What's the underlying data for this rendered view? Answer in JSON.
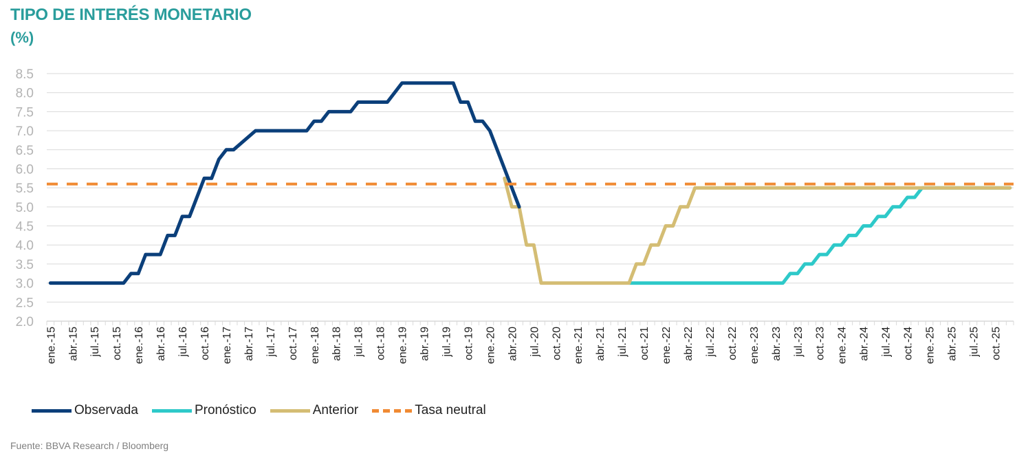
{
  "title": "TIPO DE INTERÉS MONETARIO",
  "subtitle": "(%)",
  "source": "Fuente: BBVA Research / Bloomberg",
  "colors": {
    "title": "#2a9d9c",
    "observada": "#0b3f7a",
    "pronostico": "#2ec9c9",
    "anterior": "#d4bd74",
    "tasa_neutral": "#f08a33",
    "grid": "#d9d9d9",
    "axis_text": "#b3b3b3",
    "tick_text": "#222222"
  },
  "chart_data": {
    "type": "line",
    "title": "TIPO DE INTERÉS MONETARIO",
    "ylabel": "(%)",
    "ylim": [
      2.0,
      8.5
    ],
    "yticks": [
      "2.0",
      "2.5",
      "3.0",
      "3.5",
      "4.0",
      "4.5",
      "5.0",
      "5.5",
      "6.0",
      "6.5",
      "7.0",
      "7.5",
      "8.0",
      "8.5"
    ],
    "xticks": [
      "ene.-15",
      "abr.-15",
      "jul.-15",
      "oct.-15",
      "ene.-16",
      "abr.-16",
      "jul.-16",
      "oct.-16",
      "ene.-17",
      "abr.-17",
      "jul.-17",
      "oct.-17",
      "ene.-18",
      "abr.-18",
      "jul.-18",
      "oct.-18",
      "ene.-19",
      "abr.-19",
      "jul.-19",
      "oct.-19",
      "ene.-20",
      "abr.-20",
      "jul.-20",
      "oct.-20",
      "ene.-21",
      "abr.-21",
      "jul.-21",
      "oct.-21",
      "ene.-22",
      "abr.-22",
      "jul.-22",
      "oct.-22",
      "ene.-23",
      "abr.-23",
      "jul.-23",
      "oct.-23",
      "ene.-24",
      "abr.-24",
      "jul.-24",
      "oct.-24",
      "ene.-25",
      "abr.-25",
      "jul.-25",
      "oct.-25"
    ],
    "grid": true,
    "legend_position": "bottom-left",
    "series": [
      {
        "name": "Observada",
        "style": "solid",
        "points": [
          [
            "ene.-15",
            3.0
          ],
          [
            "nov.-15",
            3.0
          ],
          [
            "dic.-15",
            3.25
          ],
          [
            "ene.-16",
            3.25
          ],
          [
            "feb.-16",
            3.75
          ],
          [
            "abr.-16",
            3.75
          ],
          [
            "may.-16",
            4.25
          ],
          [
            "jun.-16",
            4.25
          ],
          [
            "jul.-16",
            4.75
          ],
          [
            "ago.-16",
            4.75
          ],
          [
            "oct.-16",
            5.75
          ],
          [
            "nov.-16",
            5.75
          ],
          [
            "dic.-16",
            6.25
          ],
          [
            "ene.-17",
            6.5
          ],
          [
            "feb.-17",
            6.5
          ],
          [
            "may.-17",
            7.0
          ],
          [
            "dic.-17",
            7.0
          ],
          [
            "ene.-18",
            7.25
          ],
          [
            "feb.-18",
            7.25
          ],
          [
            "mar.-18",
            7.5
          ],
          [
            "jun.-18",
            7.5
          ],
          [
            "jul.-18",
            7.75
          ],
          [
            "nov.-18",
            7.75
          ],
          [
            "ene.-19",
            8.25
          ],
          [
            "ago.-19",
            8.25
          ],
          [
            "sep.-19",
            7.75
          ],
          [
            "oct.-19",
            7.75
          ],
          [
            "nov.-19",
            7.25
          ],
          [
            "dic.-19",
            7.25
          ],
          [
            "ene.-20",
            7.0
          ],
          [
            "may.-20",
            5.0
          ]
        ]
      },
      {
        "name": "Pronóstico",
        "style": "solid",
        "points": [
          [
            "ago.-21",
            3.0
          ],
          [
            "may.-23",
            3.0
          ],
          [
            "jun.-23",
            3.25
          ],
          [
            "jul.-23",
            3.25
          ],
          [
            "ago.-23",
            3.5
          ],
          [
            "sep.-23",
            3.5
          ],
          [
            "oct.-23",
            3.75
          ],
          [
            "nov.-23",
            3.75
          ],
          [
            "dic.-23",
            4.0
          ],
          [
            "ene.-24",
            4.0
          ],
          [
            "feb.-24",
            4.25
          ],
          [
            "mar.-24",
            4.25
          ],
          [
            "abr.-24",
            4.5
          ],
          [
            "may.-24",
            4.5
          ],
          [
            "jun.-24",
            4.75
          ],
          [
            "jul.-24",
            4.75
          ],
          [
            "ago.-24",
            5.0
          ],
          [
            "sep.-24",
            5.0
          ],
          [
            "oct.-24",
            5.25
          ],
          [
            "nov.-24",
            5.25
          ],
          [
            "dic.-24",
            5.5
          ],
          [
            "dic.-25",
            5.5
          ]
        ]
      },
      {
        "name": "Anterior",
        "style": "solid",
        "points": [
          [
            "mar.-20",
            5.75
          ],
          [
            "abr.-20",
            5.0
          ],
          [
            "may.-20",
            5.0
          ],
          [
            "jun.-20",
            4.0
          ],
          [
            "jul.-20",
            4.0
          ],
          [
            "ago.-20",
            3.0
          ],
          [
            "ago.-21",
            3.0
          ],
          [
            "sep.-21",
            3.5
          ],
          [
            "oct.-21",
            3.5
          ],
          [
            "nov.-21",
            4.0
          ],
          [
            "dic.-21",
            4.0
          ],
          [
            "ene.-22",
            4.5
          ],
          [
            "feb.-22",
            4.5
          ],
          [
            "mar.-22",
            5.0
          ],
          [
            "abr.-22",
            5.0
          ],
          [
            "may.-22",
            5.5
          ],
          [
            "dic.-25",
            5.5
          ]
        ]
      },
      {
        "name": "Tasa neutral",
        "style": "dashed",
        "points": [
          [
            "ene.-15",
            5.6
          ],
          [
            "dic.-25",
            5.6
          ]
        ]
      }
    ]
  }
}
